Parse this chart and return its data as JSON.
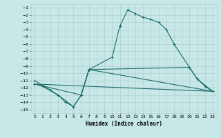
{
  "xlabel": "Humidex (Indice chaleur)",
  "bg_color": "#c8e8e8",
  "grid_color": "#b0d0d0",
  "line_color": "#1a6b6b",
  "xlim": [
    -0.5,
    23.5
  ],
  "ylim": [
    -15.5,
    -0.5
  ],
  "yticks": [
    -1,
    -2,
    -3,
    -4,
    -5,
    -6,
    -7,
    -8,
    -9,
    -10,
    -11,
    -12,
    -13,
    -14,
    -15
  ],
  "xticks": [
    0,
    1,
    2,
    3,
    4,
    5,
    6,
    7,
    8,
    9,
    10,
    11,
    12,
    13,
    14,
    15,
    16,
    17,
    18,
    19,
    20,
    21,
    22,
    23
  ],
  "series1_x": [
    0,
    1,
    2,
    3,
    4,
    5,
    6,
    7,
    10,
    11,
    12,
    13,
    14,
    15,
    16,
    17,
    18,
    20,
    21,
    22,
    23
  ],
  "series1_y": [
    -11,
    -11.7,
    -12.3,
    -13,
    -14,
    -14.6,
    -13.0,
    -9.5,
    -7.8,
    -3.5,
    -1.3,
    -1.8,
    -2.3,
    -2.6,
    -3.0,
    -4.0,
    -6.0,
    -9.2,
    -10.8,
    -11.8,
    -12.5
  ],
  "series2_x": [
    0,
    1,
    3,
    5,
    6,
    7,
    23
  ],
  "series2_y": [
    -11.5,
    -11.8,
    -13.0,
    -14.6,
    -13.0,
    -9.5,
    -12.5
  ],
  "series3_x": [
    0,
    6,
    7,
    20,
    21,
    23
  ],
  "series3_y": [
    -11.5,
    -13.0,
    -9.5,
    -9.2,
    -10.8,
    -12.5
  ],
  "series4_x": [
    0,
    23
  ],
  "series4_y": [
    -11.5,
    -12.5
  ]
}
